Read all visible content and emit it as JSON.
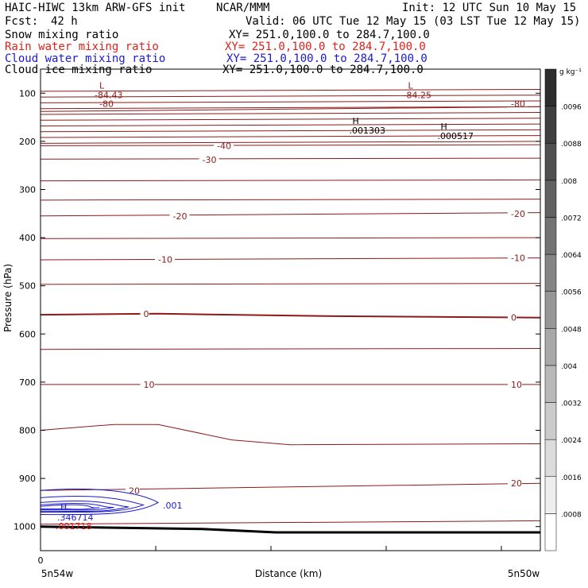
{
  "header": {
    "model": "HAIC-HIWC 13km ARW-GFS init",
    "org": "NCAR/MMM",
    "init": "Init: 12 UTC Sun 10 May 15",
    "fcst_label": "Fcst:",
    "fcst_value": "42 h",
    "valid": "Valid: 06 UTC Tue 12 May 15 (03 LST Tue 12 May 15)",
    "fields": [
      {
        "name": "Snow mixing ratio",
        "xy": "XY= 251.0,100.0 to 284.7,100.0",
        "color": "#000000"
      },
      {
        "name": "Rain water mixing ratio",
        "xy": "XY= 251.0,100.0 to 284.7,100.0",
        "color": "#e0201a"
      },
      {
        "name": "Cloud water mixing ratio",
        "xy": "XY= 251.0,100.0 to 284.7,100.0",
        "color": "#1a1ad0"
      },
      {
        "name": "Cloud ice mixing ratio",
        "xy": "XY= 251.0,100.0 to 284.7,100.0",
        "color": "#000000"
      }
    ]
  },
  "chart_data": {
    "type": "contour-cross-section",
    "ylabel": "Pressure (hPa)",
    "xlabel": "Distance (km)",
    "ylim": [
      1050,
      50
    ],
    "y_ticks": [
      100,
      200,
      300,
      400,
      500,
      600,
      700,
      800,
      900,
      1000
    ],
    "x_range": [
      0,
      34
    ],
    "x_tick_first": "0",
    "x_endpoints": [
      "5n54w",
      "5n50w"
    ],
    "colorbar": {
      "unit": "g kg⁻¹",
      "levels": [
        ".0008",
        ".0016",
        ".0024",
        ".0032",
        ".004",
        ".0048",
        ".0056",
        ".0064",
        ".0072",
        ".008",
        ".0088",
        ".0096"
      ]
    },
    "temperature_contours": {
      "color": "#8b1a1a",
      "units": "°C",
      "levels": [
        {
          "p": [
            [
              0,
              138
            ],
            [
              34,
              128
            ]
          ],
          "label": "-80",
          "lx": [
            [
              4,
              122
            ],
            [
              32,
              122
            ]
          ]
        },
        {
          "p": [
            [
              0,
              209
            ],
            [
              34,
              207
            ]
          ],
          "label": "-40",
          "lx": [
            [
              12,
              209
            ]
          ]
        },
        {
          "p": [
            [
              0,
              237
            ],
            [
              34,
              235
            ]
          ],
          "label": "-30",
          "lx": [
            [
              11,
              238
            ]
          ]
        },
        {
          "p": [
            [
              0,
              355
            ],
            [
              34,
              348
            ]
          ],
          "label": "-20",
          "lx": [
            [
              9,
              355
            ],
            [
              32,
              350
            ]
          ]
        },
        {
          "p": [
            [
              0,
              446
            ],
            [
              34,
              442
            ]
          ],
          "label": "-10",
          "lx": [
            [
              8,
              445
            ],
            [
              32,
              442
            ]
          ]
        },
        {
          "p": [
            [
              0,
              560
            ],
            [
              8,
              558
            ],
            [
              20,
              563
            ],
            [
              34,
              566
            ]
          ],
          "label": "0",
          "lx": [
            [
              7,
              558
            ],
            [
              32,
              566
            ]
          ]
        },
        {
          "p": [
            [
              0,
              705
            ],
            [
              34,
              705
            ]
          ],
          "label": "10",
          "lx": [
            [
              7,
              705
            ],
            [
              32,
              705
            ]
          ]
        },
        {
          "p": [
            [
              0,
              800
            ],
            [
              5,
              788
            ],
            [
              8,
              788
            ],
            [
              13,
              820
            ],
            [
              17,
              830
            ],
            [
              34,
              828
            ]
          ],
          "label": "",
          "lx": []
        },
        {
          "p": [
            [
              0,
              925
            ],
            [
              34,
              910
            ]
          ],
          "label": "20",
          "lx": [
            [
              6,
              925
            ],
            [
              32,
              910
            ]
          ]
        },
        {
          "p": [
            [
              0,
              995
            ],
            [
              34,
              988
            ]
          ],
          "label": "",
          "lx": []
        }
      ]
    },
    "minima": [
      {
        "label": "L",
        "value": "-84.43",
        "x": 4,
        "p": 100
      },
      {
        "label": "L",
        "value": "-84.25",
        "x": 25,
        "p": 100
      }
    ],
    "maxima": [
      {
        "label": "H",
        "value": ".001303",
        "x": 21,
        "p": 180
      },
      {
        "label": "H",
        "value": ".000517",
        "x": 27,
        "p": 192
      }
    ],
    "cloud_water": {
      "contour_label": ".001",
      "max_label": "H",
      "max_value": ".346714"
    },
    "rain_water": {
      "max_value": ".001718"
    }
  }
}
